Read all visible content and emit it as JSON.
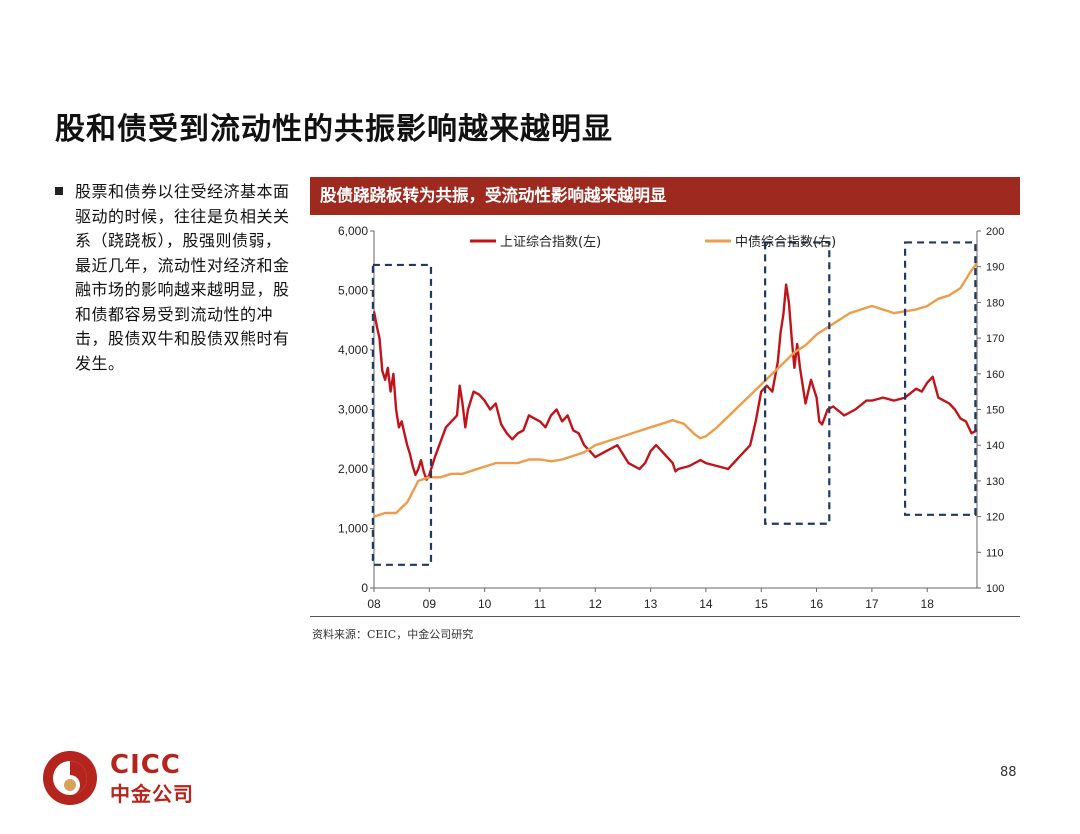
{
  "slide": {
    "title": "股和债受到流动性的共振影响越来越明显",
    "bullet": "股票和债券以往受经济基本面驱动的时候，往往是负相关关系（跷跷板），股强则债弱，最近几年，流动性对经济和金融市场的影响越来越明显，股和债都容易受到流动性的冲击，股债双牛和股债双熊时有发生。",
    "page_number": "88",
    "source": "资料来源：CEIC，中金公司研究",
    "logo": {
      "en": "CICC",
      "cn": "中金公司"
    }
  },
  "chart_data": {
    "type": "line",
    "title": "股债跷跷板转为共振，受流动性影响越来越明显",
    "legend_placement": "top",
    "grid": false,
    "x_tick_labels": [
      "08",
      "09",
      "10",
      "11",
      "12",
      "13",
      "14",
      "15",
      "16",
      "17",
      "18"
    ],
    "xlim": [
      2008.0,
      2018.9
    ],
    "y_left": {
      "ticks": [
        "0",
        "1,000",
        "2,000",
        "3,000",
        "4,000",
        "5,000",
        "6,000"
      ],
      "lim": [
        0,
        6000
      ]
    },
    "y_right": {
      "ticks": [
        "100",
        "110",
        "120",
        "130",
        "140",
        "150",
        "160",
        "170",
        "180",
        "190",
        "200"
      ],
      "lim": [
        100,
        200
      ]
    },
    "series": [
      {
        "name": "上证综合指数(左)",
        "axis": "left",
        "color": "#c0141b",
        "x": [
          2008.0,
          2008.05,
          2008.1,
          2008.15,
          2008.2,
          2008.25,
          2008.3,
          2008.35,
          2008.4,
          2008.45,
          2008.5,
          2008.55,
          2008.6,
          2008.65,
          2008.7,
          2008.75,
          2008.8,
          2008.85,
          2008.9,
          2008.95,
          2009.0,
          2009.1,
          2009.2,
          2009.3,
          2009.4,
          2009.5,
          2009.55,
          2009.6,
          2009.65,
          2009.7,
          2009.8,
          2009.9,
          2010.0,
          2010.1,
          2010.2,
          2010.3,
          2010.4,
          2010.5,
          2010.6,
          2010.7,
          2010.8,
          2010.9,
          2011.0,
          2011.1,
          2011.2,
          2011.3,
          2011.4,
          2011.5,
          2011.6,
          2011.7,
          2011.8,
          2011.9,
          2012.0,
          2012.2,
          2012.4,
          2012.6,
          2012.8,
          2012.9,
          2013.0,
          2013.1,
          2013.2,
          2013.3,
          2013.4,
          2013.45,
          2013.5,
          2013.7,
          2013.9,
          2014.0,
          2014.2,
          2014.4,
          2014.6,
          2014.7,
          2014.8,
          2014.9,
          2015.0,
          2015.1,
          2015.2,
          2015.3,
          2015.35,
          2015.4,
          2015.45,
          2015.5,
          2015.55,
          2015.6,
          2015.65,
          2015.7,
          2015.8,
          2015.9,
          2016.0,
          2016.05,
          2016.1,
          2016.2,
          2016.3,
          2016.5,
          2016.7,
          2016.9,
          2017.0,
          2017.2,
          2017.4,
          2017.6,
          2017.8,
          2017.9,
          2018.0,
          2018.1,
          2018.2,
          2018.3,
          2018.4,
          2018.5,
          2018.6,
          2018.7,
          2018.8,
          2018.9
        ],
        "y": [
          4650,
          4400,
          4200,
          3650,
          3500,
          3700,
          3300,
          3600,
          3000,
          2700,
          2800,
          2600,
          2400,
          2250,
          2050,
          1900,
          2000,
          2150,
          1950,
          1820,
          1900,
          2200,
          2450,
          2700,
          2800,
          2900,
          3400,
          3100,
          2700,
          3000,
          3300,
          3250,
          3150,
          3000,
          3100,
          2750,
          2600,
          2500,
          2600,
          2650,
          2900,
          2850,
          2800,
          2700,
          2900,
          3000,
          2800,
          2900,
          2650,
          2600,
          2400,
          2300,
          2200,
          2300,
          2400,
          2100,
          2000,
          2100,
          2300,
          2400,
          2300,
          2200,
          2100,
          1960,
          2000,
          2050,
          2150,
          2100,
          2050,
          2000,
          2200,
          2300,
          2400,
          2800,
          3300,
          3400,
          3300,
          3800,
          4300,
          4600,
          5100,
          4800,
          4200,
          3700,
          4100,
          3700,
          3100,
          3500,
          3200,
          2800,
          2750,
          3000,
          3050,
          2900,
          3000,
          3150,
          3150,
          3200,
          3150,
          3200,
          3350,
          3300,
          3450,
          3550,
          3200,
          3150,
          3100,
          3000,
          2850,
          2800,
          2600,
          2650
        ]
      },
      {
        "name": "中债综合指数(右)",
        "axis": "right",
        "color": "#ed9c4a",
        "x": [
          2008.0,
          2008.2,
          2008.4,
          2008.6,
          2008.8,
          2009.0,
          2009.2,
          2009.4,
          2009.6,
          2009.8,
          2010.0,
          2010.2,
          2010.4,
          2010.6,
          2010.8,
          2011.0,
          2011.2,
          2011.4,
          2011.6,
          2011.8,
          2012.0,
          2012.2,
          2012.4,
          2012.6,
          2012.8,
          2013.0,
          2013.2,
          2013.4,
          2013.6,
          2013.8,
          2013.9,
          2014.0,
          2014.2,
          2014.4,
          2014.6,
          2014.8,
          2015.0,
          2015.2,
          2015.4,
          2015.6,
          2015.8,
          2016.0,
          2016.2,
          2016.4,
          2016.6,
          2016.8,
          2017.0,
          2017.2,
          2017.4,
          2017.6,
          2017.8,
          2018.0,
          2018.2,
          2018.4,
          2018.6,
          2018.8,
          2018.9
        ],
        "y": [
          120,
          121,
          121,
          124,
          130,
          131,
          131,
          132,
          132,
          133,
          134,
          135,
          135,
          135,
          136,
          136,
          135.5,
          136,
          137,
          138,
          140,
          141,
          142,
          143,
          144,
          145,
          146,
          147,
          146,
          143,
          142,
          142.5,
          145,
          148,
          151,
          154,
          157,
          160,
          163,
          166,
          168,
          171,
          173,
          175,
          177,
          178,
          179,
          178,
          177,
          177.5,
          178,
          179,
          181,
          182,
          184,
          189,
          191
        ]
      }
    ],
    "highlight_boxes": [
      {
        "x_range": [
          2007.98,
          2009.03
        ],
        "y_range": [
          190.5,
          106.5
        ],
        "style": "dashed"
      },
      {
        "x_range": [
          2015.07,
          2016.23
        ],
        "y_range": [
          196.8,
          118
        ]
      },
      {
        "x_range": [
          2017.6,
          2018.87
        ],
        "y_range": [
          196.8,
          120.5
        ]
      }
    ]
  }
}
